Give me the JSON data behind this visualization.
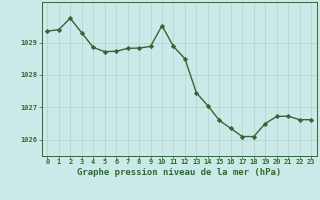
{
  "x": [
    0,
    1,
    2,
    3,
    4,
    5,
    6,
    7,
    8,
    9,
    10,
    11,
    12,
    13,
    14,
    15,
    16,
    17,
    18,
    19,
    20,
    21,
    22,
    23
  ],
  "y": [
    1029.35,
    1029.4,
    1029.75,
    1029.3,
    1028.85,
    1028.72,
    1028.73,
    1028.82,
    1028.83,
    1028.88,
    1029.52,
    1028.88,
    1028.5,
    1027.45,
    1027.05,
    1026.6,
    1026.35,
    1026.1,
    1026.1,
    1026.5,
    1026.72,
    1026.73,
    1026.62,
    1026.62
  ],
  "line_color": "#336633",
  "marker": "D",
  "marker_size": 2.2,
  "linewidth": 1.0,
  "background_color": "#cce9e9",
  "grid_color": "#b0d4cc",
  "title": "Graphe pression niveau de la mer (hPa)",
  "ylim": [
    1025.5,
    1030.25
  ],
  "xlim": [
    -0.5,
    23.5
  ],
  "yticks": [
    1026,
    1027,
    1028,
    1029
  ],
  "xticks": [
    0,
    1,
    2,
    3,
    4,
    5,
    6,
    7,
    8,
    9,
    10,
    11,
    12,
    13,
    14,
    15,
    16,
    17,
    18,
    19,
    20,
    21,
    22,
    23
  ],
  "tick_color": "#2d6b2d",
  "tick_fontsize": 5.0,
  "title_fontsize": 6.5,
  "title_fontweight": "bold"
}
